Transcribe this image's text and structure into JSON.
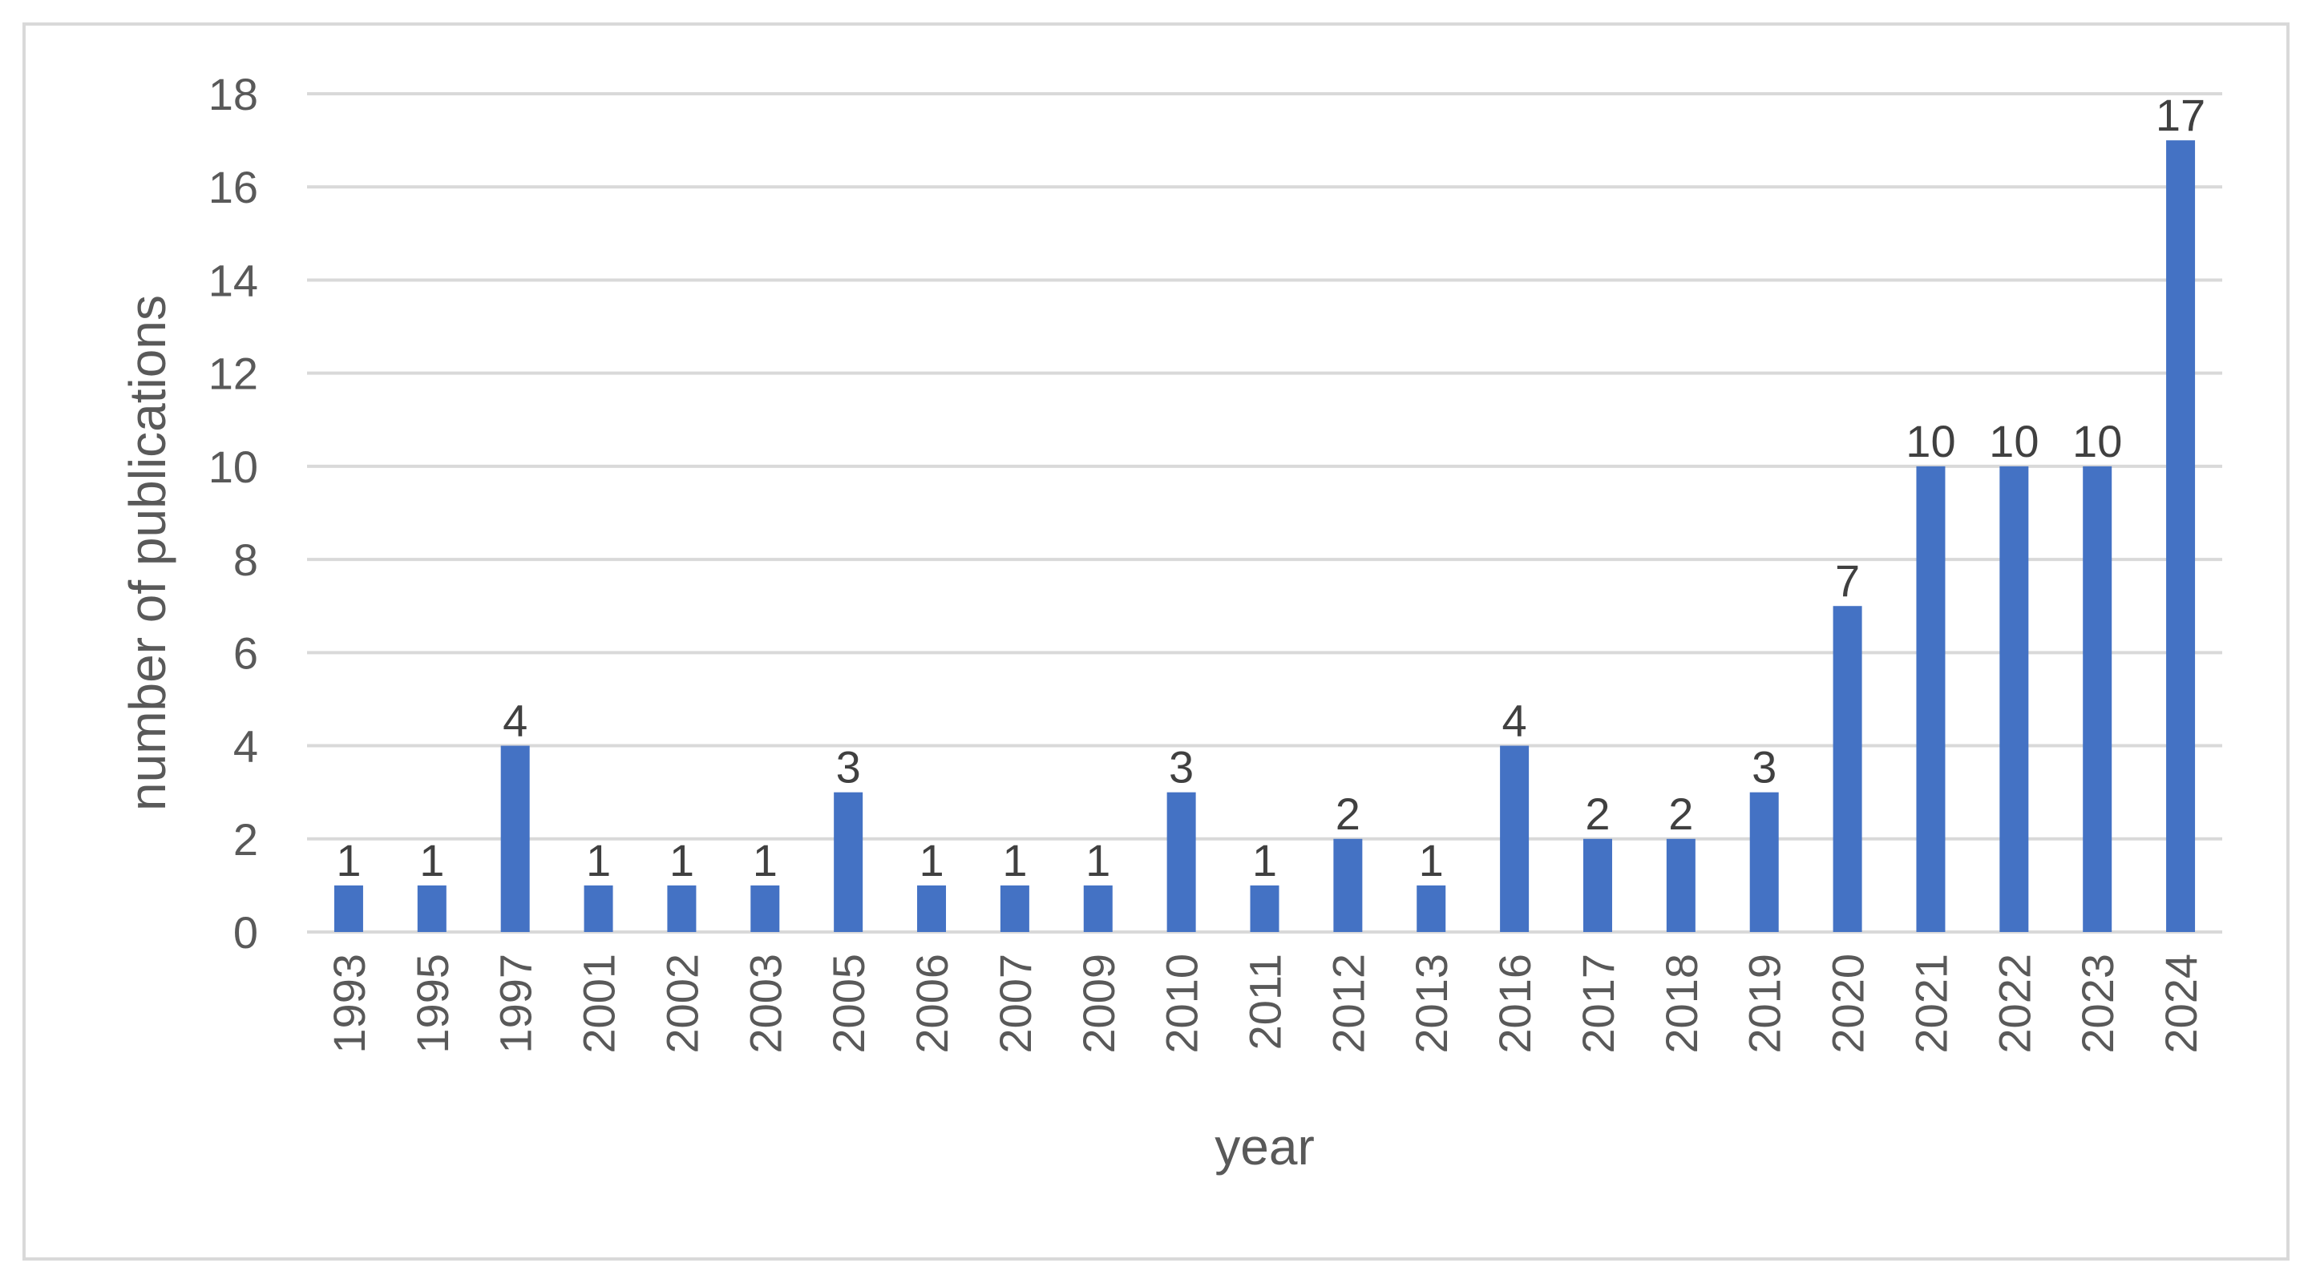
{
  "chart_data": {
    "type": "bar",
    "title": "",
    "xlabel": "year",
    "ylabel": "number of publications",
    "ylim": [
      0,
      18
    ],
    "yticks": [
      0,
      2,
      4,
      6,
      8,
      10,
      12,
      14,
      16,
      18
    ],
    "grid": true,
    "legend": "none",
    "bar_color": "#4472c4",
    "grid_color": "#d9d9d9",
    "categories": [
      "1993",
      "1995",
      "1997",
      "2001",
      "2002",
      "2003",
      "2005",
      "2006",
      "2007",
      "2009",
      "2010",
      "2011",
      "2012",
      "2013",
      "2016",
      "2017",
      "2018",
      "2019",
      "2020",
      "2021",
      "2022",
      "2023",
      "2024"
    ],
    "values": [
      1,
      1,
      4,
      1,
      1,
      1,
      3,
      1,
      1,
      1,
      3,
      1,
      2,
      1,
      4,
      2,
      2,
      3,
      7,
      10,
      10,
      10,
      17
    ],
    "data_labels": [
      "1",
      "1",
      "4",
      "1",
      "1",
      "1",
      "3",
      "1",
      "1",
      "1",
      "3",
      "1",
      "2",
      "1",
      "4",
      "2",
      "2",
      "3",
      "7",
      "10",
      "10",
      "10",
      "17"
    ]
  }
}
